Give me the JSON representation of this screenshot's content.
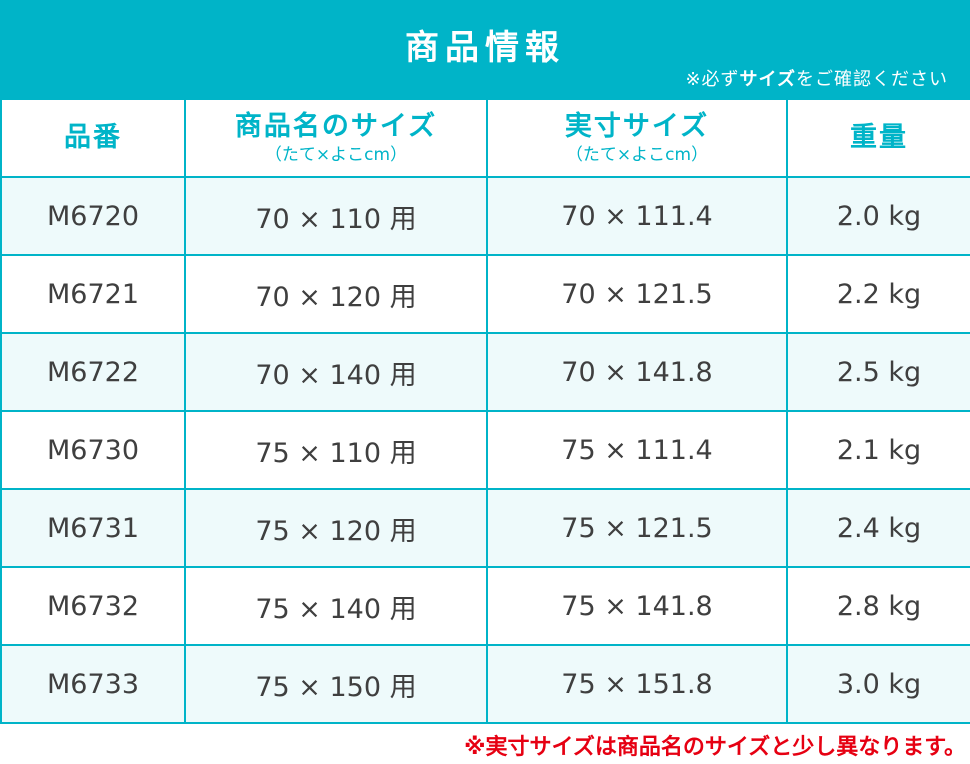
{
  "header": {
    "title": "商品情報",
    "note_prefix": "※必ず",
    "note_bold": "サイズ",
    "note_suffix": "をご確認ください"
  },
  "table": {
    "columns": [
      {
        "label": "品番",
        "sub": ""
      },
      {
        "label": "商品名のサイズ",
        "sub": "（たて×よこcm）"
      },
      {
        "label": "実寸サイズ",
        "sub": "（たて×よこcm）"
      },
      {
        "label": "重量",
        "sub": ""
      }
    ],
    "rows": [
      {
        "code": "M6720",
        "name_size": "70 × 110 用",
        "actual_size": "70 × 111.4",
        "weight": "2.0 kg"
      },
      {
        "code": "M6721",
        "name_size": "70 × 120 用",
        "actual_size": "70 × 121.5",
        "weight": "2.2 kg"
      },
      {
        "code": "M6722",
        "name_size": "70 × 140 用",
        "actual_size": "70 × 141.8",
        "weight": "2.5 kg"
      },
      {
        "code": "M6730",
        "name_size": "75 × 110 用",
        "actual_size": "75 × 111.4",
        "weight": "2.1 kg"
      },
      {
        "code": "M6731",
        "name_size": "75 × 120 用",
        "actual_size": "75 × 121.5",
        "weight": "2.4 kg"
      },
      {
        "code": "M6732",
        "name_size": "75 × 140 用",
        "actual_size": "75 × 141.8",
        "weight": "2.8 kg"
      },
      {
        "code": "M6733",
        "name_size": "75 × 150 用",
        "actual_size": "75 × 151.8",
        "weight": "3.0 kg"
      }
    ]
  },
  "footer_note": "※実寸サイズは商品名のサイズと少し異なります。",
  "colors": {
    "accent": "#00b4c8",
    "row_alt": "#eefafb",
    "text": "#3f3f3f",
    "warning": "#e60012"
  }
}
